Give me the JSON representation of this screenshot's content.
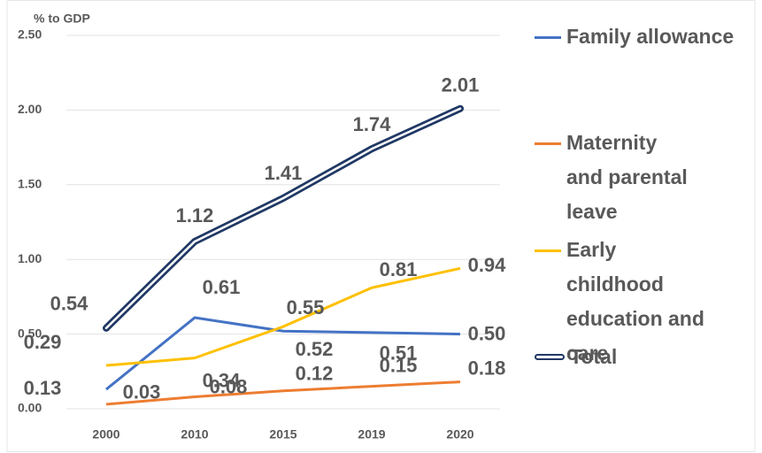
{
  "chart_data": {
    "type": "line",
    "y_axis_label": "% to GDP",
    "categories": [
      "2000",
      "2010",
      "2015",
      "2019",
      "2020"
    ],
    "ylim": [
      0,
      2.5
    ],
    "yticks": [
      {
        "value": 0,
        "label": "0.00"
      },
      {
        "value": 0.5,
        "label": "0.50"
      },
      {
        "value": 1,
        "label": "1.00"
      },
      {
        "value": 1.5,
        "label": "1.50"
      },
      {
        "value": 2,
        "label": "2.00"
      },
      {
        "value": 2.5,
        "label": "2.50"
      }
    ],
    "grid": true,
    "legend": "right",
    "series": [
      {
        "name": "Family allowance",
        "color": "#4472c4",
        "values": [
          0.13,
          0.61,
          0.52,
          0.51,
          0.5
        ],
        "value_labels": [
          "0.13",
          "0.61",
          "0.52",
          "0.51",
          "0.50"
        ]
      },
      {
        "name": "Maternity and parental leave",
        "color": "#ed7d31",
        "values": [
          0.03,
          0.08,
          0.12,
          0.15,
          0.18
        ],
        "value_labels": [
          "0.03",
          "0.08",
          "0.12",
          "0.15",
          "0.18"
        ]
      },
      {
        "name": "Early childhood education and care",
        "color": "#ffc000",
        "values": [
          0.29,
          0.34,
          0.55,
          0.81,
          0.94
        ],
        "value_labels": [
          "0.29",
          "0.34",
          "0.55",
          "0.81",
          "0.94"
        ]
      },
      {
        "name": "Total",
        "color": "#1f3864",
        "style": "double",
        "values": [
          0.54,
          1.12,
          1.41,
          1.74,
          2.01
        ],
        "value_labels": [
          "0.54",
          "1.12",
          "1.41",
          "1.74",
          "2.01"
        ]
      }
    ]
  }
}
